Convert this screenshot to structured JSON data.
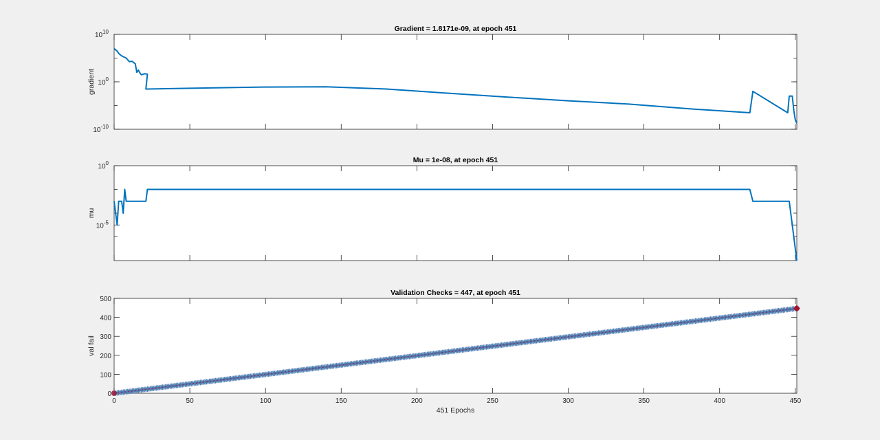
{
  "colors": {
    "line": "#0072bd",
    "marker_edge": "#4f7fb3",
    "end_marker": "#a2142f",
    "axis": "#262626",
    "grid_tick": "#262626"
  },
  "chart_data": [
    {
      "type": "line",
      "title": "Gradient = 1.8171e-09, at epoch 451",
      "xlabel": "",
      "ylabel": "gradient",
      "yscale": "log",
      "xlim": [
        0,
        451
      ],
      "ylim": [
        1e-10,
        10000000000.0
      ],
      "yticks": [
        {
          "base": "10",
          "exp": "-10"
        },
        {
          "base": "10",
          "exp": "0"
        },
        {
          "base": "10",
          "exp": "10"
        }
      ],
      "series": [
        {
          "x": [
            0,
            2,
            3,
            4,
            5,
            6,
            8,
            10,
            12,
            14,
            15,
            16,
            17,
            18,
            20,
            22,
            21,
            22,
            60,
            100,
            140,
            180,
            220,
            260,
            300,
            340,
            380,
            420,
            422,
            445,
            446,
            448,
            449,
            450,
            451
          ],
          "y": [
            10000000.0,
            3000000.0,
            1000000.0,
            500000.0,
            300000.0,
            200000.0,
            100000.0,
            18000.0,
            20000.0,
            6000.0,
            100,
            300,
            80,
            30,
            50.0,
            40.0,
            0.03,
            0.03,
            0.05,
            0.08,
            0.09,
            0.03,
            0.004,
            0.0006,
            0.0001,
            2e-05,
            2e-06,
            3e-07,
            0.01,
            3e-07,
            0.001,
            0.001,
            1e-06,
            1e-08,
            1.8171e-09
          ]
        }
      ]
    },
    {
      "type": "line",
      "title": "Mu = 1e-08, at epoch 451",
      "xlabel": "",
      "ylabel": "mu",
      "yscale": "log",
      "xlim": [
        0,
        451
      ],
      "ylim": [
        1e-08,
        1
      ],
      "yticks": [
        {
          "base": "10",
          "exp": "-5"
        },
        {
          "base": "10",
          "exp": "0"
        }
      ],
      "series": [
        {
          "x": [
            0,
            2,
            3,
            4,
            5,
            6,
            7,
            8,
            9,
            10,
            11,
            12,
            13,
            14,
            15,
            16,
            17,
            18,
            19,
            20,
            21,
            22,
            24,
            420,
            422,
            426,
            446,
            447,
            448,
            449,
            450,
            451
          ],
          "y": [
            0.001,
            1e-05,
            0.001,
            0.001,
            0.001,
            0.0001,
            0.01,
            0.001,
            0.001,
            0.001,
            0.001,
            0.001,
            0.001,
            0.001,
            0.001,
            0.001,
            0.001,
            0.001,
            0.001,
            0.001,
            0.001,
            0.01,
            0.01,
            0.01,
            0.001,
            0.001,
            0.001,
            0.0001,
            1e-05,
            1e-06,
            1e-07,
            1e-08
          ]
        }
      ]
    },
    {
      "type": "line",
      "title": "Validation Checks = 447, at epoch 451",
      "xlabel": "451 Epochs",
      "ylabel": "val fail",
      "yscale": "linear",
      "xlim": [
        0,
        451
      ],
      "ylim": [
        0,
        500
      ],
      "xticks": [
        0,
        50,
        100,
        150,
        200,
        250,
        300,
        350,
        400,
        450
      ],
      "yticks": [
        0,
        100,
        200,
        300,
        400,
        500
      ],
      "series": [
        {
          "x_start": 0,
          "x_end": 451,
          "y_start": 0,
          "y_end": 447,
          "markers": "*"
        }
      ],
      "end_point": {
        "x": 451,
        "y": 447
      }
    }
  ]
}
